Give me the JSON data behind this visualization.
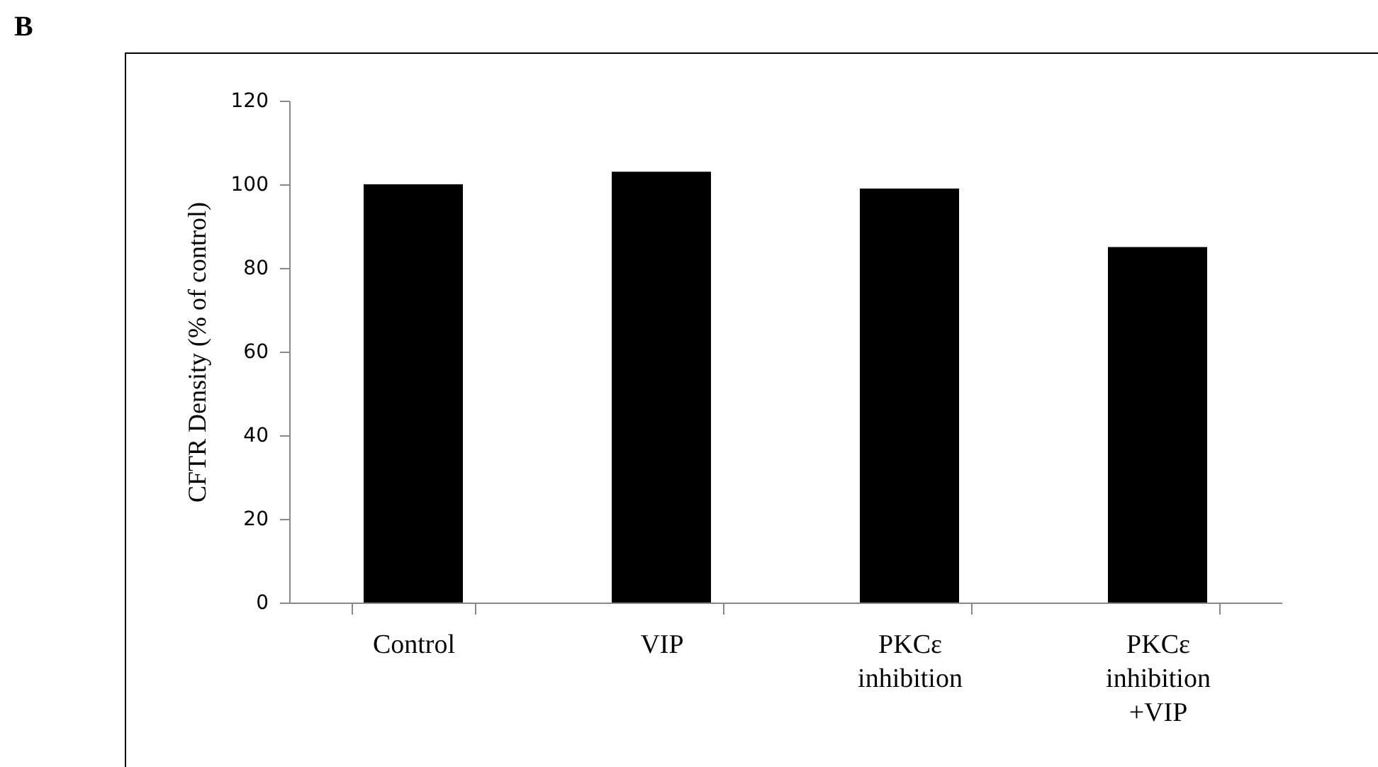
{
  "chart_data": {
    "type": "bar",
    "ylabel": "CFTR Density (% of control)",
    "annotations": [
      "B"
    ],
    "categories": [
      "Control",
      "VIP",
      "PKCε\ninhibition",
      "PKCε\ninhibition\n+VIP"
    ],
    "values": [
      100,
      103,
      99,
      85
    ],
    "color": "#000000",
    "ylim": [
      0,
      120
    ],
    "yticks": [
      0,
      20,
      40,
      60,
      80,
      100,
      120
    ],
    "grid": false
  }
}
